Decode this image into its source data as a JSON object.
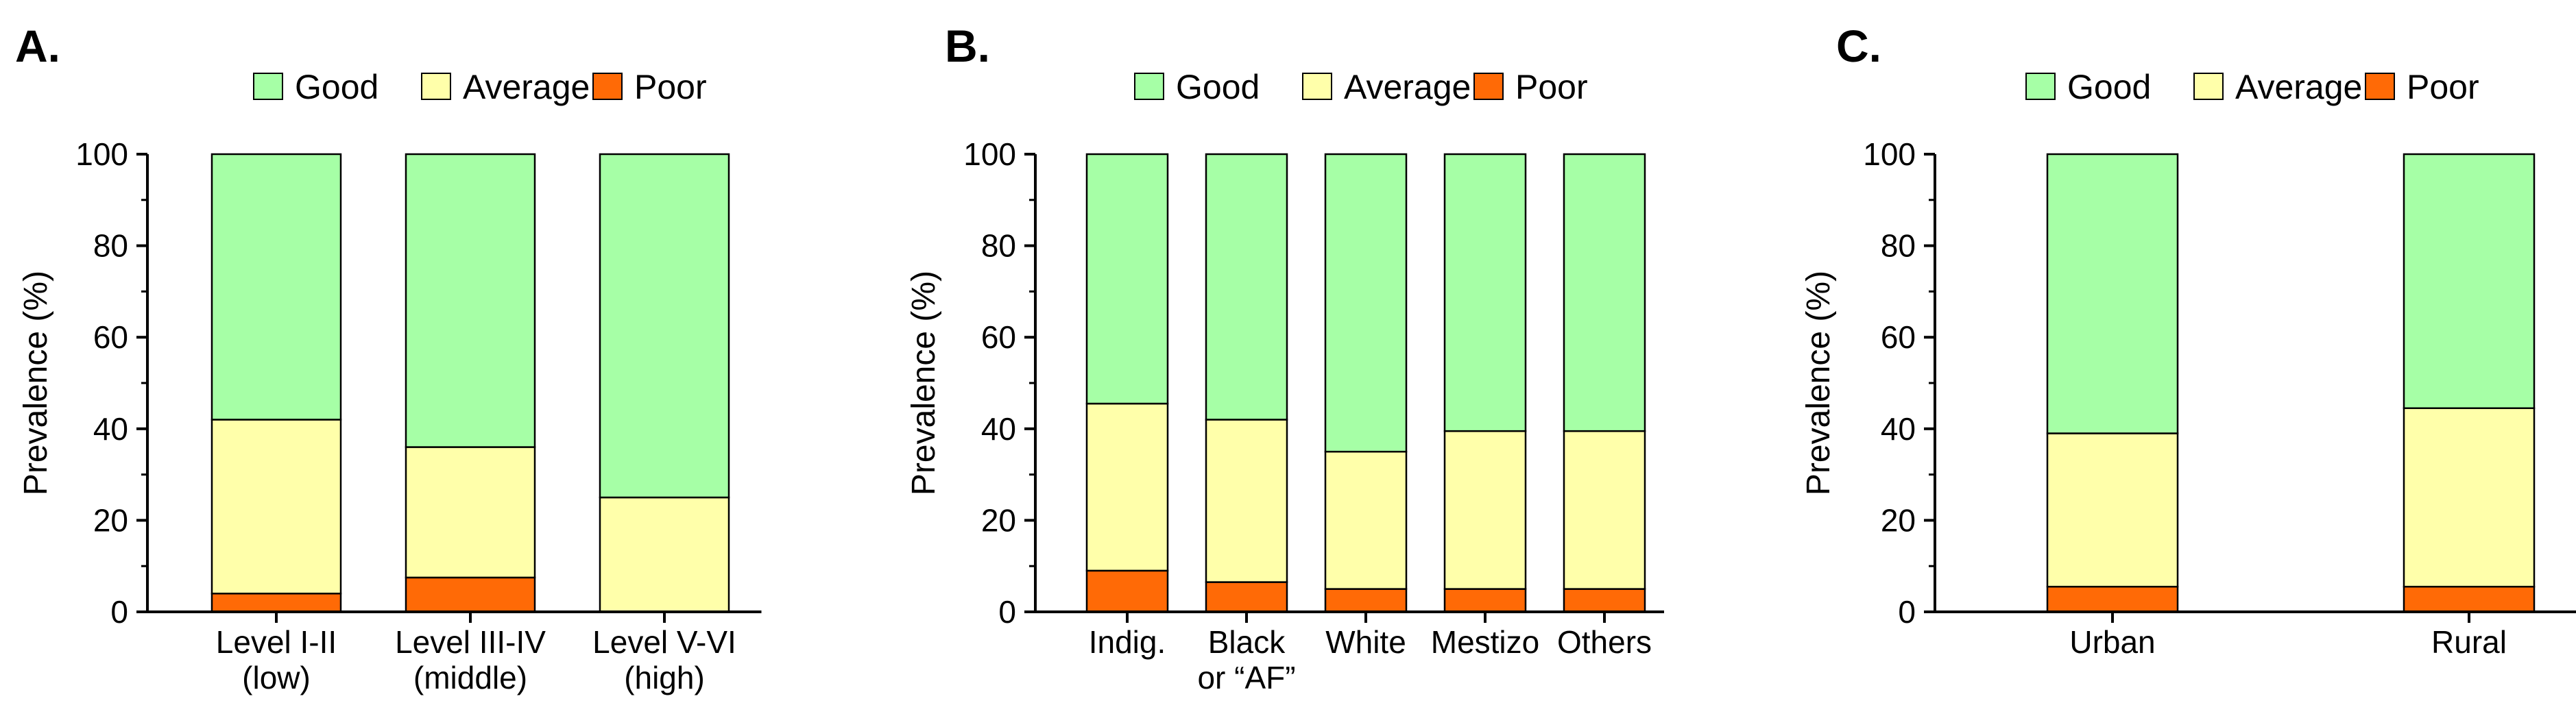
{
  "legend": {
    "items": [
      {
        "label": "Good",
        "color": "#a6ffa6"
      },
      {
        "label": "Average",
        "color": "#ffffaa"
      },
      {
        "label": "Poor",
        "color": "#ff6a06"
      }
    ]
  },
  "chart_data": [
    {
      "type": "bar",
      "stacked": true,
      "panel": "A.",
      "ylabel": "Prevalence (%)",
      "ylim": [
        0,
        100
      ],
      "yticks": [
        0,
        20,
        40,
        60,
        80,
        100
      ],
      "categories": [
        [
          "Level I-II",
          "(low)"
        ],
        [
          "Level III-IV",
          "(middle)"
        ],
        [
          "Level V-VI",
          "(high)"
        ]
      ],
      "series": [
        {
          "name": "Poor",
          "color": "#ff6a06",
          "values": [
            4,
            7.5,
            0
          ]
        },
        {
          "name": "Average",
          "color": "#ffffaa",
          "values": [
            38,
            28.5,
            25
          ]
        },
        {
          "name": "Good",
          "color": "#a6ffa6",
          "values": [
            58,
            64,
            75
          ]
        }
      ]
    },
    {
      "type": "bar",
      "stacked": true,
      "panel": "B.",
      "ylabel": "Prevalence (%)",
      "ylim": [
        0,
        100
      ],
      "yticks": [
        0,
        20,
        40,
        60,
        80,
        100
      ],
      "categories": [
        [
          "Indig."
        ],
        [
          "Black",
          "or “AF”"
        ],
        [
          "White"
        ],
        [
          "Mestizo"
        ],
        [
          "Others"
        ]
      ],
      "series": [
        {
          "name": "Poor",
          "color": "#ff6a06",
          "values": [
            9,
            6.5,
            5,
            5,
            5
          ]
        },
        {
          "name": "Average",
          "color": "#ffffaa",
          "values": [
            36.5,
            35.5,
            30,
            34.5,
            34.5
          ]
        },
        {
          "name": "Good",
          "color": "#a6ffa6",
          "values": [
            54.5,
            58,
            65,
            60.5,
            60.5
          ]
        }
      ]
    },
    {
      "type": "bar",
      "stacked": true,
      "panel": "C.",
      "ylabel": "Prevalence (%)",
      "ylim": [
        0,
        100
      ],
      "yticks": [
        0,
        20,
        40,
        60,
        80,
        100
      ],
      "categories": [
        [
          "Urban"
        ],
        [
          "Rural"
        ]
      ],
      "series": [
        {
          "name": "Poor",
          "color": "#ff6a06",
          "values": [
            5.5,
            5.5
          ]
        },
        {
          "name": "Average",
          "color": "#ffffaa",
          "values": [
            33.5,
            39
          ]
        },
        {
          "name": "Good",
          "color": "#a6ffa6",
          "values": [
            61,
            55.5
          ]
        }
      ]
    }
  ]
}
